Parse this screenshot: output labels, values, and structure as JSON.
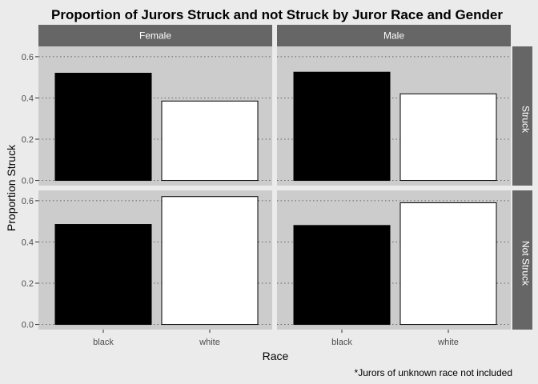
{
  "chart_data": {
    "type": "bar",
    "title": "Proportion of Jurors Struck and not Struck by Juror Race and Gender",
    "xlabel": "Race",
    "ylabel": "Proportion Struck",
    "caption": "*Jurors of unknown race not included",
    "categories": [
      "black",
      "white"
    ],
    "column_facets": [
      "Female",
      "Male"
    ],
    "row_facets": [
      "Struck",
      "Not Struck"
    ],
    "yticks": [
      "0.0",
      "0.2",
      "0.4",
      "0.6"
    ],
    "ylim": [
      -0.025,
      0.65
    ],
    "grid": true,
    "bar_colors": {
      "black": "#000000",
      "white": "#ffffff"
    },
    "panels": [
      {
        "row": "Struck",
        "column": "Female",
        "values": [
          0.52,
          0.385
        ]
      },
      {
        "row": "Struck",
        "column": "Male",
        "values": [
          0.525,
          0.42
        ]
      },
      {
        "row": "Not Struck",
        "column": "Female",
        "values": [
          0.485,
          0.62
        ]
      },
      {
        "row": "Not Struck",
        "column": "Male",
        "values": [
          0.48,
          0.59
        ]
      }
    ],
    "colors": {
      "panel_bg": "#cccccc",
      "strip_bg": "#666666",
      "strip_text": "#ffffff",
      "grid": "#666666",
      "bar_border": "#000000"
    }
  }
}
